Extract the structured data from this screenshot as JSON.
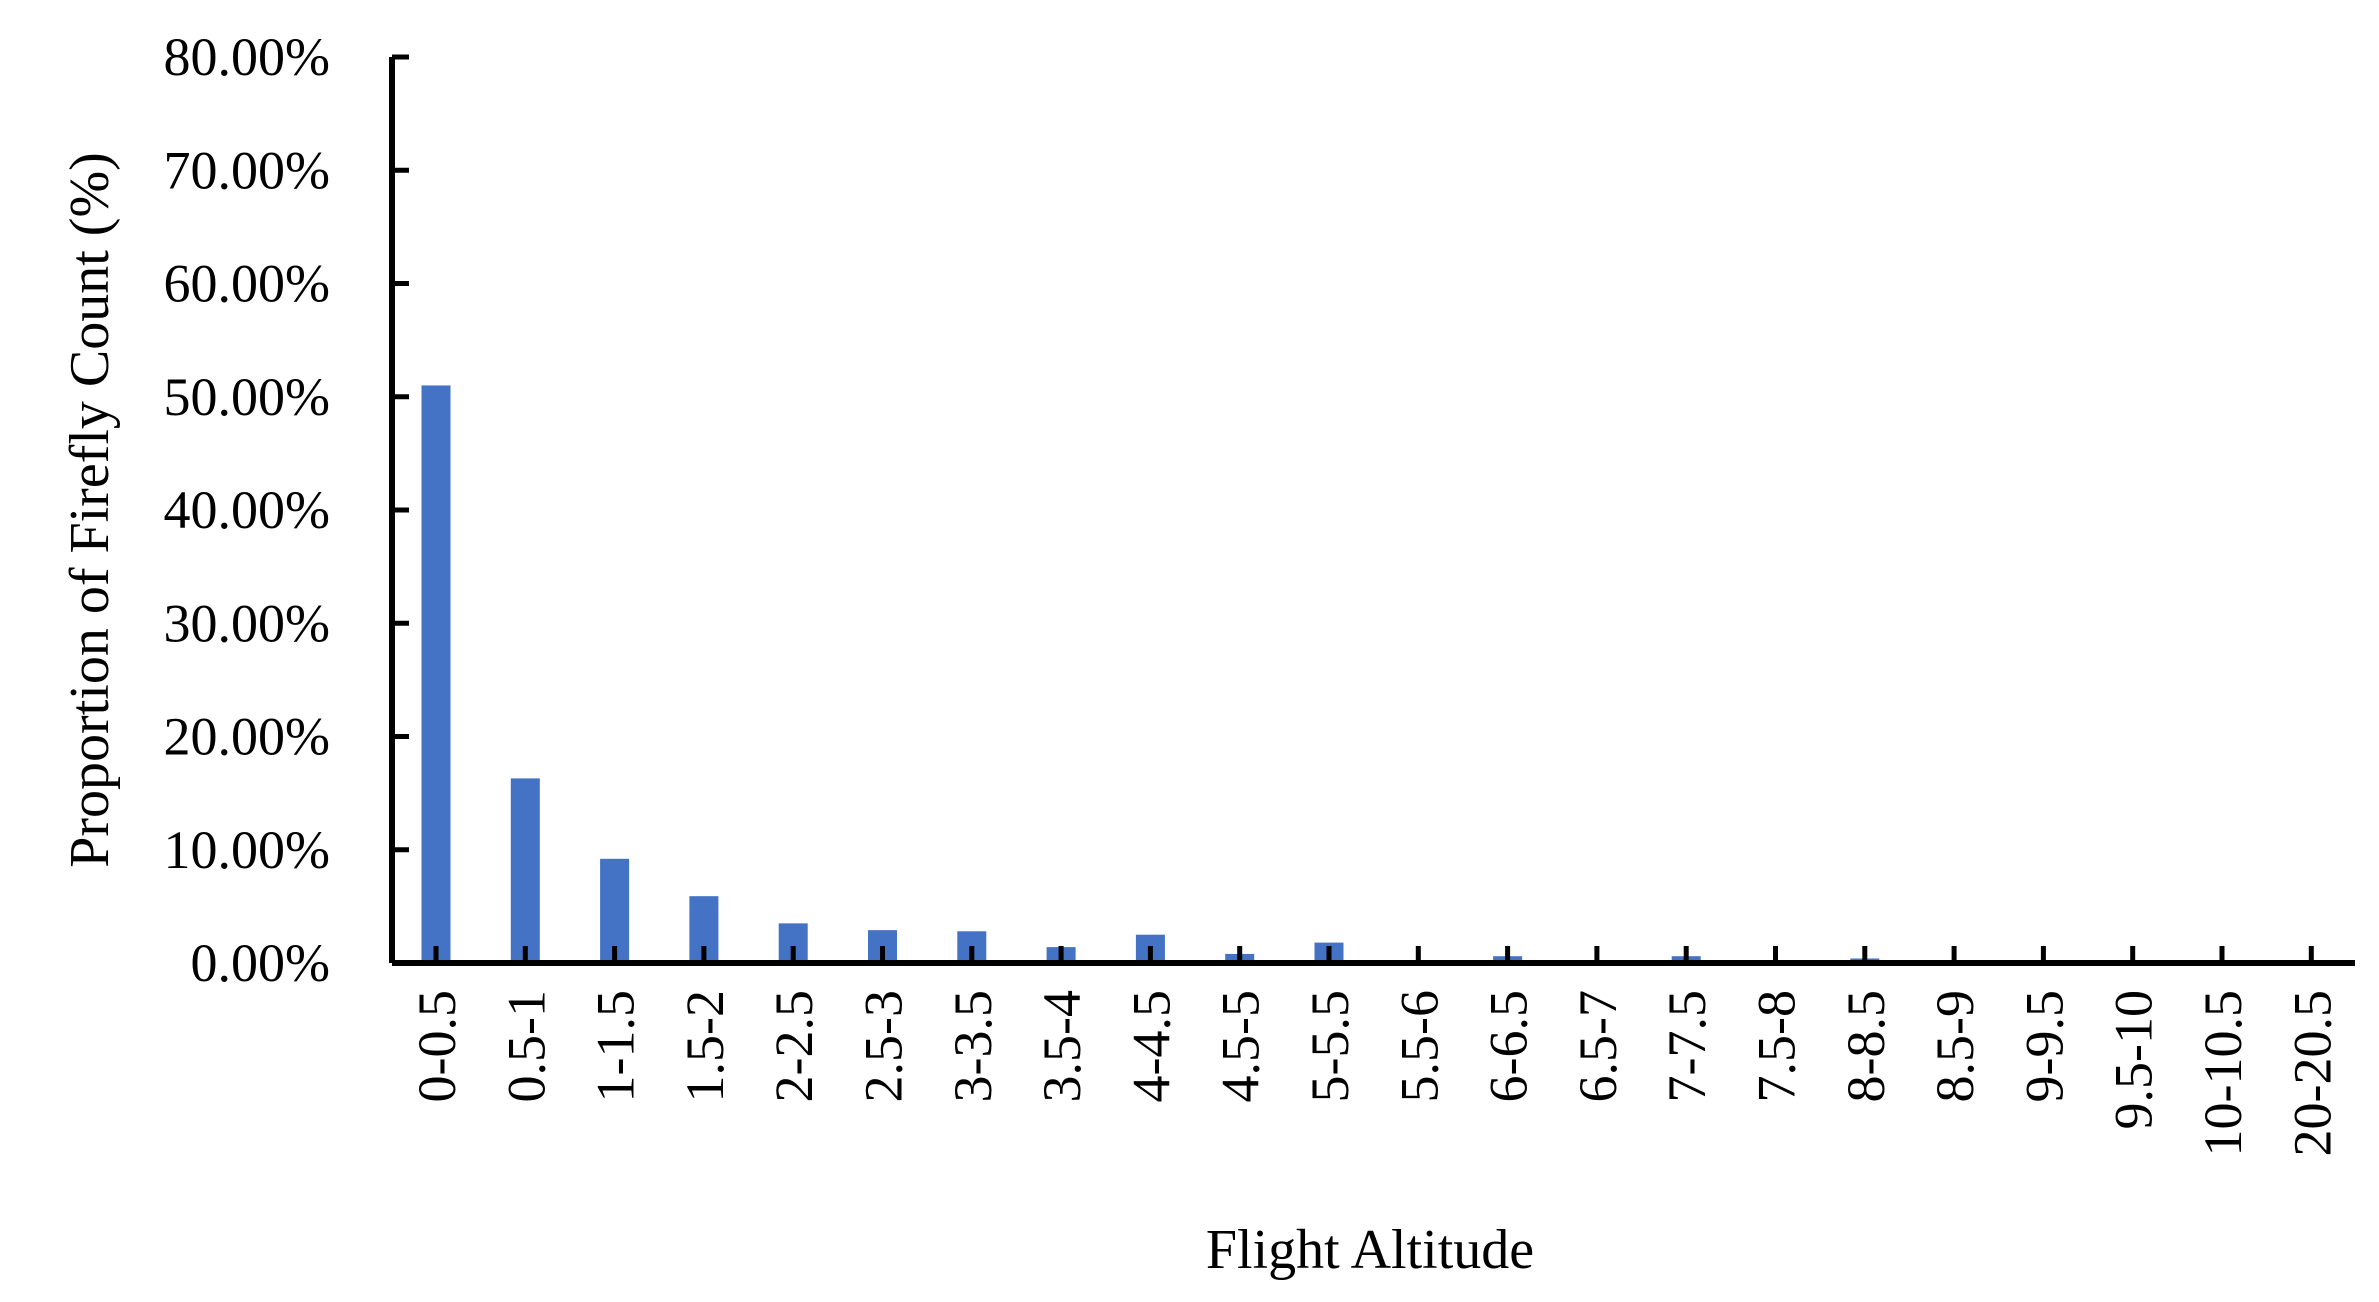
{
  "chart_data": {
    "type": "bar",
    "title": "",
    "xlabel": "Flight Altitude",
    "ylabel": "Proportion of Firefly Count (%)",
    "ylim": [
      0,
      80
    ],
    "y_ticks": [
      "0.00%",
      "10.00%",
      "20.00%",
      "30.00%",
      "40.00%",
      "50.00%",
      "60.00%",
      "70.00%",
      "80.00%"
    ],
    "grid": false,
    "legend": "none",
    "bar_color": "#4472C4",
    "categories": [
      "0-0.5",
      "0.5-1",
      "1-1.5",
      "1.5-2",
      "2-2.5",
      "2.5-3",
      "3-3.5",
      "3.5-4",
      "4-4.5",
      "4.5-5",
      "5-5.5",
      "5.5-6",
      "6-6.5",
      "6.5-7",
      "7-7.5",
      "7.5-8",
      "8-8.5",
      "8.5-9",
      "9-9.5",
      "9.5-10",
      "10-10.5",
      "20-20.5"
    ],
    "values": [
      51.0,
      16.3,
      9.2,
      5.9,
      3.5,
      2.9,
      2.8,
      1.4,
      2.5,
      0.8,
      1.8,
      0.0,
      0.6,
      0.0,
      0.6,
      0.0,
      0.4,
      0.0,
      0.0,
      0.0,
      0.0,
      0.0
    ]
  }
}
